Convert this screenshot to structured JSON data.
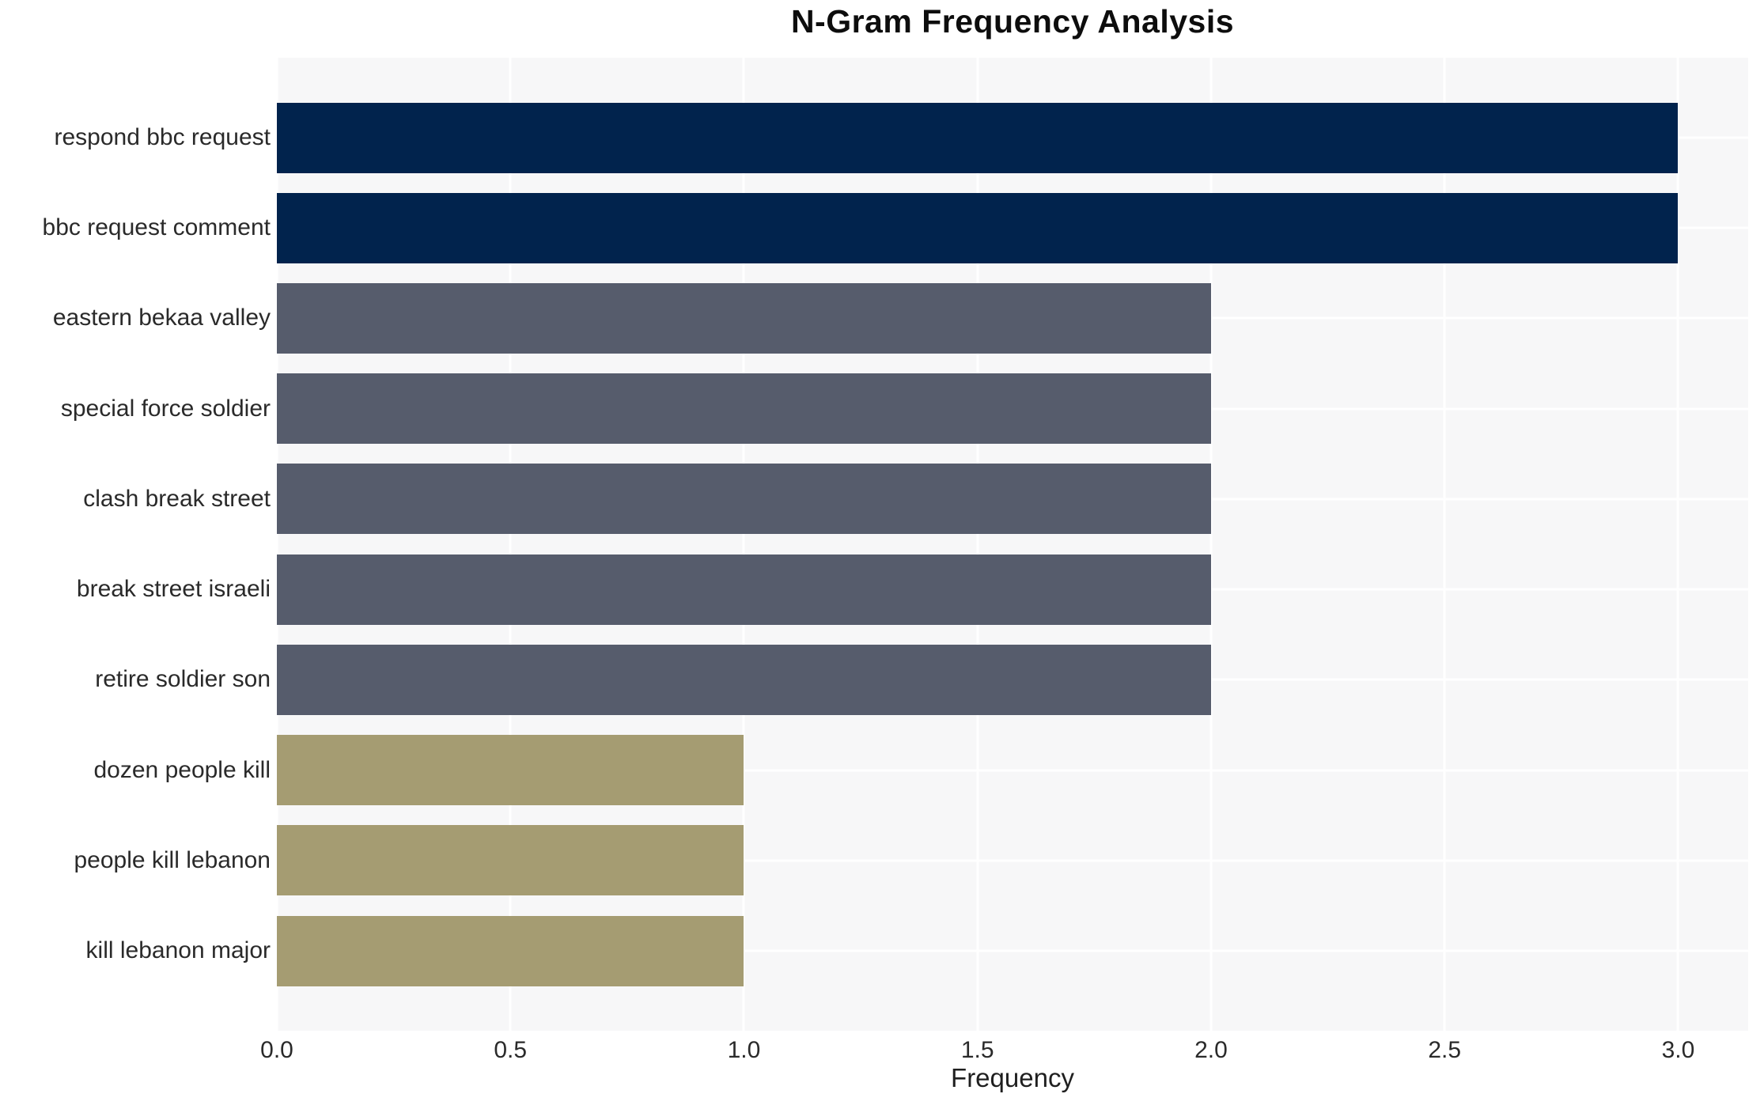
{
  "chart_data": {
    "type": "bar",
    "orientation": "horizontal",
    "title": "N-Gram Frequency Analysis",
    "xlabel": "Frequency",
    "ylabel": "",
    "categories": [
      "respond bbc request",
      "bbc request comment",
      "eastern bekaa valley",
      "special force soldier",
      "clash break street",
      "break street israeli",
      "retire soldier son",
      "dozen people kill",
      "people kill lebanon",
      "kill lebanon major"
    ],
    "values": [
      3,
      3,
      2,
      2,
      2,
      2,
      2,
      1,
      1,
      1
    ],
    "bar_colors": [
      "#01234d",
      "#01234d",
      "#565c6c",
      "#565c6c",
      "#565c6c",
      "#565c6c",
      "#565c6c",
      "#a59c72",
      "#a59c72",
      "#a59c72"
    ],
    "x_ticks": [
      0.0,
      0.5,
      1.0,
      1.5,
      2.0,
      2.5,
      3.0
    ],
    "x_tick_labels": [
      "0.0",
      "0.5",
      "1.0",
      "1.5",
      "2.0",
      "2.5",
      "3.0"
    ],
    "xlim": [
      0,
      3.15
    ],
    "grid": true,
    "legend": false,
    "colors": {
      "plot_background": "#f7f7f8",
      "figure_background": "#ffffff",
      "grid_color": "#ffffff",
      "navy": "#01234d",
      "slate": "#565c6c",
      "khaki": "#a59c72",
      "text": "#2a2a2a",
      "title_text": "#0d0d0d"
    }
  }
}
